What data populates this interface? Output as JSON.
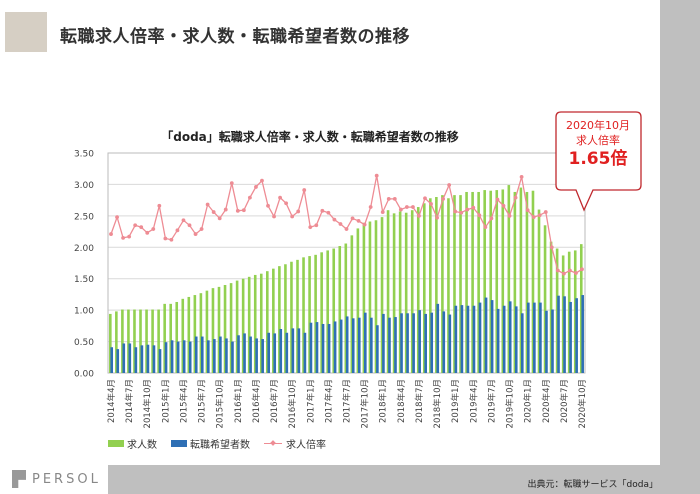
{
  "page_title": "転職求人倍率・求人数・転職希望者数の推移",
  "logo_text": "PERSOL",
  "source": "出典元：転職サービス「doda」",
  "callout": {
    "period": "2020年10月",
    "label": "求人倍率",
    "value": "1.65倍"
  },
  "colors": {
    "jobs": "#92d050",
    "seekers": "#2e6fb5",
    "ratio": "#ee8c94",
    "accent": "#e02020"
  },
  "chart_data": {
    "type": "bar",
    "title": "「doda」転職求人倍率・求人数・転職希望者数の推移",
    "xlabel": "",
    "ylabel": "",
    "ylim": [
      0,
      3.5
    ],
    "yticks": [
      "0.00",
      "0.50",
      "1.00",
      "1.50",
      "2.00",
      "2.50",
      "3.00",
      "3.50"
    ],
    "grid": true,
    "legend_position": "bottom-left",
    "x_tick_labels": [
      "2014年4月",
      "2014年7月",
      "2014年10月",
      "2015年1月",
      "2015年4月",
      "2015年7月",
      "2015年10月",
      "2016年1月",
      "2016年4月",
      "2016年7月",
      "2016年10月",
      "2017年1月",
      "2017年4月",
      "2017年7月",
      "2017年10月",
      "2018年1月",
      "2018年4月",
      "2018年7月",
      "2018年10月",
      "2019年1月",
      "2019年4月",
      "2019年7月",
      "2019年10月",
      "2020年1月",
      "2020年4月",
      "2020年7月",
      "2020年10月"
    ],
    "x_range": [
      "2014年4月",
      "2020年10月"
    ],
    "series": [
      {
        "name": "求人数",
        "type": "bar",
        "values": [
          0.94,
          0.98,
          1.01,
          1.01,
          1.01,
          1.01,
          1.01,
          1.01,
          1.01,
          1.1,
          1.1,
          1.13,
          1.18,
          1.21,
          1.24,
          1.27,
          1.31,
          1.35,
          1.37,
          1.4,
          1.43,
          1.47,
          1.5,
          1.53,
          1.56,
          1.58,
          1.62,
          1.66,
          1.7,
          1.73,
          1.77,
          1.8,
          1.84,
          1.86,
          1.88,
          1.92,
          1.95,
          1.98,
          2.02,
          2.06,
          2.19,
          2.3,
          2.39,
          2.41,
          2.43,
          2.48,
          2.59,
          2.54,
          2.57,
          2.55,
          2.59,
          2.64,
          2.7,
          2.78,
          2.8,
          2.83,
          2.78,
          2.83,
          2.83,
          2.88,
          2.88,
          2.88,
          2.91,
          2.9,
          2.91,
          2.92,
          2.99,
          2.88,
          2.95,
          2.88,
          2.9,
          2.6,
          2.35,
          2.09,
          1.98,
          1.87,
          1.93,
          1.95,
          2.05
        ]
      },
      {
        "name": "転職希望者数",
        "type": "bar",
        "values": [
          0.41,
          0.38,
          0.47,
          0.47,
          0.41,
          0.44,
          0.45,
          0.44,
          0.38,
          0.49,
          0.52,
          0.5,
          0.52,
          0.5,
          0.58,
          0.58,
          0.52,
          0.54,
          0.58,
          0.55,
          0.5,
          0.6,
          0.63,
          0.58,
          0.55,
          0.54,
          0.64,
          0.63,
          0.7,
          0.64,
          0.71,
          0.71,
          0.64,
          0.8,
          0.81,
          0.78,
          0.78,
          0.82,
          0.85,
          0.9,
          0.87,
          0.88,
          0.96,
          0.88,
          0.76,
          0.94,
          0.88,
          0.89,
          0.95,
          0.95,
          0.95,
          1.0,
          0.94,
          0.96,
          1.1,
          0.98,
          0.93,
          1.07,
          1.08,
          1.07,
          1.07,
          1.12,
          1.2,
          1.16,
          1.02,
          1.07,
          1.14,
          1.06,
          0.95,
          1.12,
          1.12,
          1.12,
          0.99,
          1.01,
          1.23,
          1.22,
          1.13,
          1.19,
          1.24
        ]
      },
      {
        "name": "求人倍率",
        "type": "line",
        "values": [
          2.21,
          2.48,
          2.15,
          2.17,
          2.35,
          2.32,
          2.23,
          2.29,
          2.66,
          2.14,
          2.12,
          2.27,
          2.43,
          2.35,
          2.21,
          2.29,
          2.68,
          2.56,
          2.46,
          2.6,
          3.02,
          2.58,
          2.59,
          2.79,
          2.96,
          3.06,
          2.66,
          2.49,
          2.79,
          2.7,
          2.49,
          2.57,
          2.91,
          2.32,
          2.35,
          2.58,
          2.55,
          2.44,
          2.37,
          2.29,
          2.46,
          2.42,
          2.36,
          2.64,
          3.14,
          2.56,
          2.77,
          2.77,
          2.6,
          2.64,
          2.64,
          2.5,
          2.78,
          2.69,
          2.47,
          2.77,
          2.99,
          2.57,
          2.55,
          2.6,
          2.63,
          2.51,
          2.32,
          2.46,
          2.76,
          2.66,
          2.5,
          2.79,
          3.12,
          2.59,
          2.48,
          2.51,
          2.56,
          2.0,
          1.63,
          1.58,
          1.63,
          1.59,
          1.65
        ]
      }
    ]
  }
}
